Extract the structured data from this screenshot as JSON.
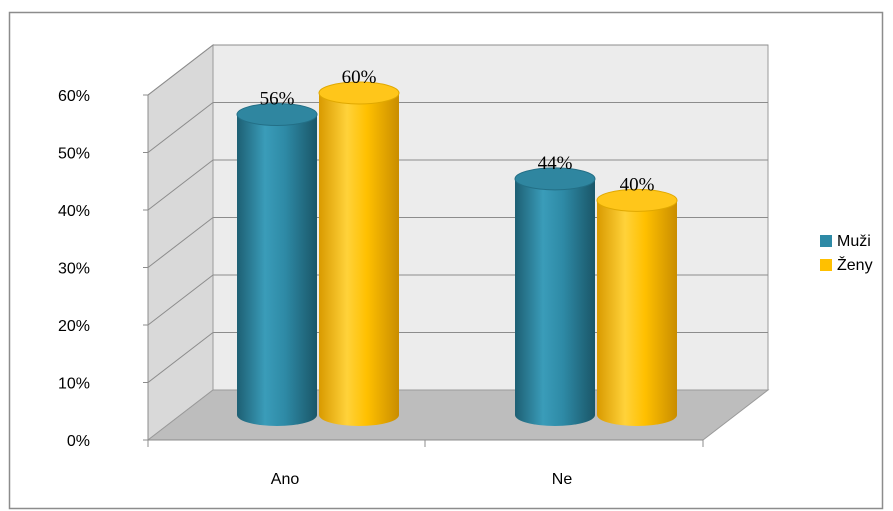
{
  "chart_data": {
    "type": "bar",
    "categories": [
      "Ano",
      "Ne"
    ],
    "series": [
      {
        "name": "Muži",
        "values": [
          56,
          44
        ],
        "value_labels": [
          "56%",
          "44%"
        ]
      },
      {
        "name": "Ženy",
        "values": [
          60,
          40
        ],
        "value_labels": [
          "60%",
          "40%"
        ]
      }
    ],
    "y_ticks": [
      "0%",
      "10%",
      "20%",
      "30%",
      "40%",
      "50%",
      "60%"
    ],
    "ylim": [
      0,
      60
    ],
    "unit": "%",
    "grid": true,
    "legend_position": "right",
    "style": "3d-cylinder",
    "colors": {
      "Muži": "#2E8AA6",
      "Ženy": "#FFC000",
      "walls": "#E6E6E6",
      "floor": "#BDBDBD",
      "gridline": "#8C8C8C"
    }
  }
}
